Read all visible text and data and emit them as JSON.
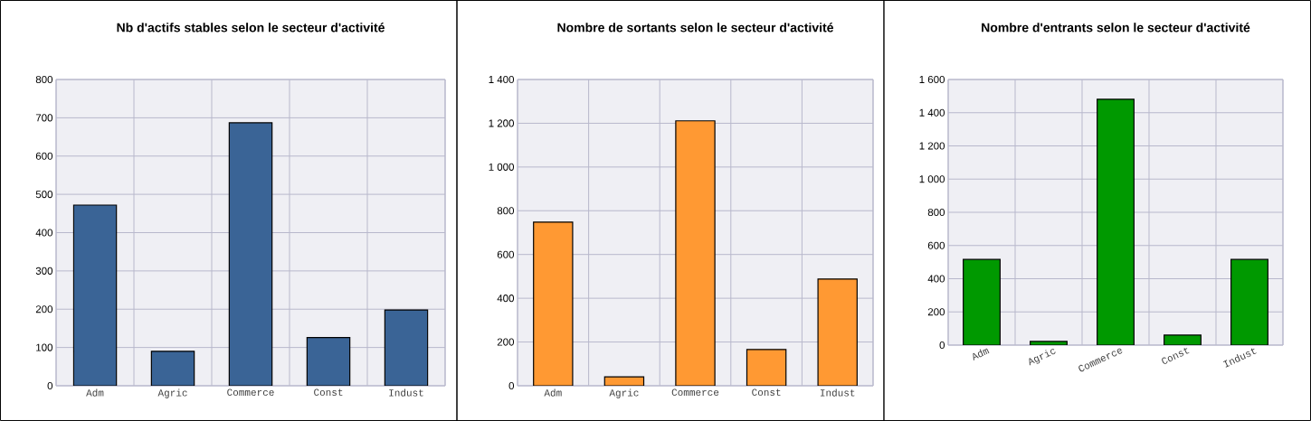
{
  "chart_data": [
    {
      "type": "bar",
      "title": "Nb d'actifs stables selon le secteur d'activité",
      "categories": [
        "Adm",
        "Agric",
        "Commerce",
        "Const",
        "Indust"
      ],
      "values": [
        472,
        90,
        687,
        126,
        198
      ],
      "color": "#3a6496",
      "ylim": [
        0,
        800
      ],
      "yticks": [
        0,
        100,
        200,
        300,
        400,
        500,
        600,
        700,
        800
      ],
      "grid": true
    },
    {
      "type": "bar",
      "title": "Nombre de sortants selon le secteur d'activité",
      "categories": [
        "Adm",
        "Agric",
        "Commerce",
        "Const",
        "Indust"
      ],
      "values": [
        748,
        41,
        1211,
        166,
        488
      ],
      "color": "#ff9933",
      "ylim": [
        0,
        1400
      ],
      "yticks": [
        0,
        200,
        400,
        600,
        800,
        {
          "value": 1000,
          "label": "1 000"
        },
        {
          "value": 1200,
          "label": "1 200"
        },
        {
          "value": 1400,
          "label": "1 400"
        }
      ],
      "grid": true
    },
    {
      "type": "bar",
      "title": "Nombre d'entrants selon le secteur d'activité",
      "categories": [
        "Adm",
        "Agric",
        "Commerce",
        "Const",
        "Indust"
      ],
      "values": [
        516,
        22,
        1481,
        60,
        516
      ],
      "color": "#009900",
      "ylim": [
        0,
        1600
      ],
      "yticks": [
        0,
        200,
        400,
        600,
        800,
        {
          "value": 1000,
          "label": "1 000"
        },
        {
          "value": 1200,
          "label": "1 200"
        },
        {
          "value": 1400,
          "label": "1 400"
        },
        {
          "value": 1600,
          "label": "1 600"
        }
      ],
      "grid": true
    }
  ]
}
